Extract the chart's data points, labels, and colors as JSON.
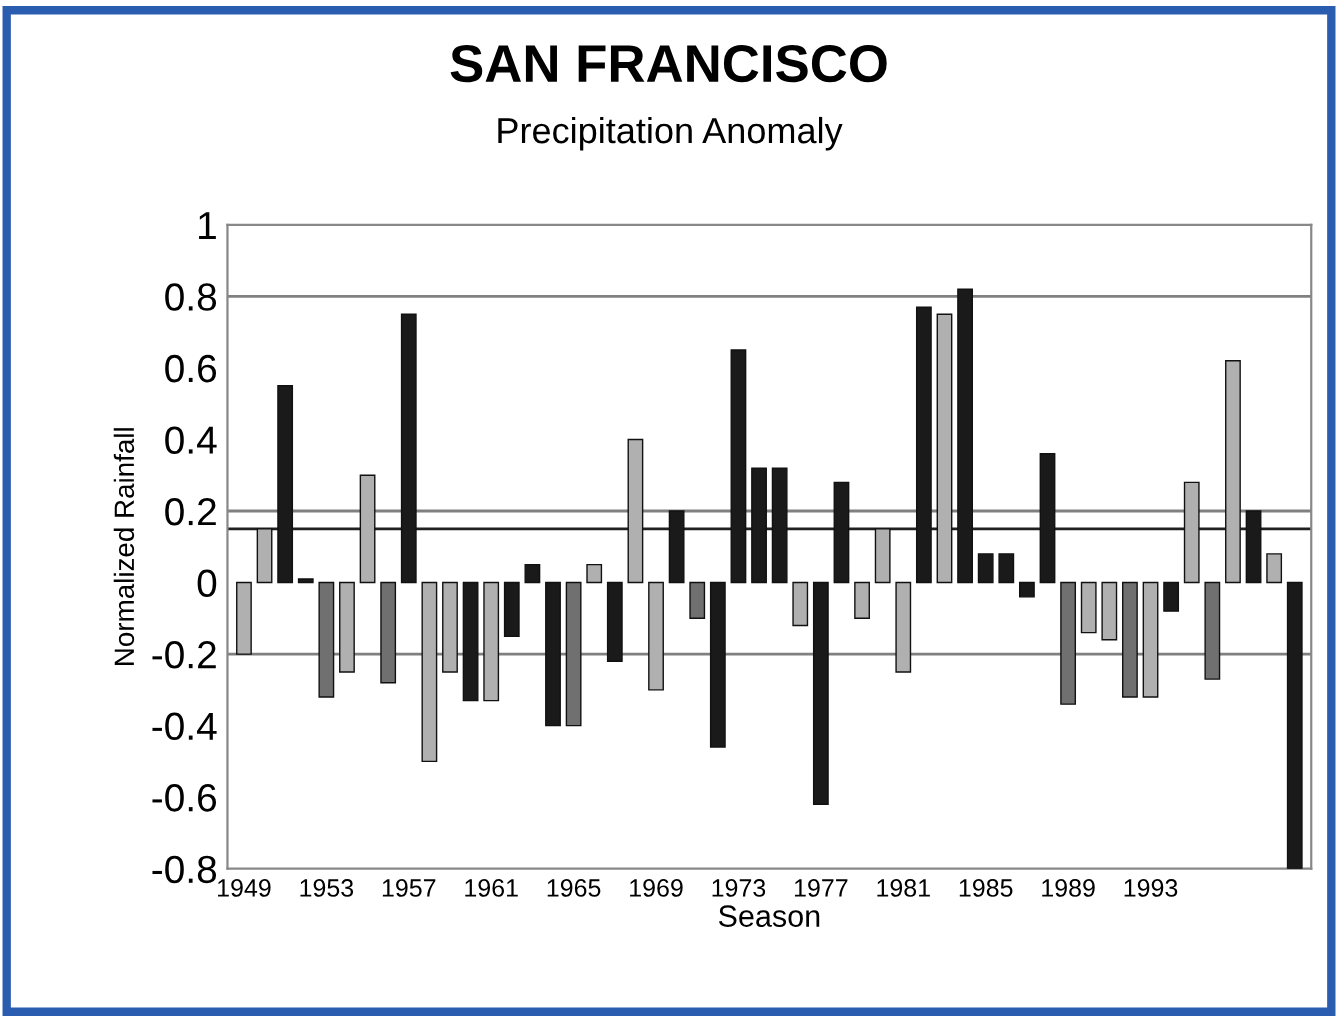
{
  "chart_data": {
    "type": "bar",
    "title": "SAN FRANCISCO",
    "subtitle": "Precipitation Anomaly",
    "xlabel": "Season",
    "ylabel": "Normalized Rainfall",
    "categories": [
      "1949",
      null,
      null,
      null,
      "1953",
      null,
      null,
      null,
      "1957",
      null,
      null,
      null,
      "1961",
      null,
      null,
      null,
      "1965",
      null,
      null,
      null,
      "1969",
      null,
      null,
      null,
      "1973",
      null,
      null,
      null,
      "1977",
      null,
      null,
      null,
      "1981",
      null,
      null,
      null,
      "1985",
      null,
      null,
      null,
      "1989",
      null,
      null,
      null,
      "1993",
      null,
      null,
      null,
      null,
      null,
      null,
      null
    ],
    "values": [
      -0.2,
      0.15,
      0.55,
      0.01,
      -0.32,
      -0.25,
      0.3,
      -0.28,
      0.75,
      -0.5,
      -0.25,
      -0.33,
      -0.33,
      -0.15,
      0.05,
      -0.4,
      -0.4,
      0.05,
      -0.22,
      0.4,
      -0.3,
      0.2,
      -0.1,
      -0.46,
      0.65,
      0.32,
      0.32,
      -0.12,
      -0.62,
      0.28,
      -0.1,
      0.15,
      -0.25,
      0.77,
      0.75,
      0.82,
      0.08,
      0.08,
      -0.04,
      0.36,
      -0.34,
      -0.14,
      -0.16,
      -0.32,
      -0.32,
      -0.08,
      0.28,
      -0.27,
      0.62,
      0.2,
      0.08,
      -0.8
    ],
    "colors": [
      "#b0b0b0",
      "#b0b0b0",
      "#1a1a1a",
      "#1a1a1a",
      "#707070",
      "#b0b0b0",
      "#b0b0b0",
      "#707070",
      "#1a1a1a",
      "#b0b0b0",
      "#b0b0b0",
      "#1a1a1a",
      "#b0b0b0",
      "#1a1a1a",
      "#1a1a1a",
      "#1a1a1a",
      "#707070",
      "#b0b0b0",
      "#1a1a1a",
      "#b0b0b0",
      "#b0b0b0",
      "#1a1a1a",
      "#707070",
      "#1a1a1a",
      "#1a1a1a",
      "#1a1a1a",
      "#1a1a1a",
      "#b0b0b0",
      "#1a1a1a",
      "#1a1a1a",
      "#b0b0b0",
      "#b0b0b0",
      "#b0b0b0",
      "#1a1a1a",
      "#b0b0b0",
      "#1a1a1a",
      "#1a1a1a",
      "#1a1a1a",
      "#1a1a1a",
      "#1a1a1a",
      "#707070",
      "#b0b0b0",
      "#b0b0b0",
      "#707070",
      "#b0b0b0",
      "#1a1a1a",
      "#b0b0b0",
      "#707070",
      "#b0b0b0",
      "#1a1a1a",
      "#b0b0b0",
      "#1a1a1a"
    ],
    "ylim": [
      -0.8,
      1
    ],
    "yticks": [
      -0.8,
      -0.6,
      -0.4,
      -0.2,
      0,
      0.2,
      0.4,
      0.6,
      0.8,
      1
    ],
    "ref_lines": [
      {
        "axis": "y",
        "value": 0.8,
        "color": "#808080"
      },
      {
        "axis": "y",
        "value": 0.2,
        "color": "#808080"
      },
      {
        "axis": "y",
        "value": 0.15,
        "color": "#202020"
      },
      {
        "axis": "y",
        "value": -0.2,
        "color": "#808080"
      }
    ]
  }
}
